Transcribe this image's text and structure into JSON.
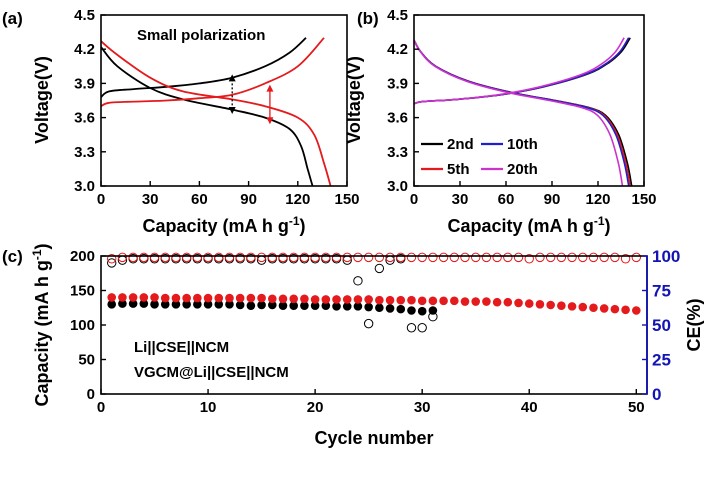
{
  "colors": {
    "black": "#000000",
    "red": "#e41a1c",
    "blue": "#1f1fd0",
    "magenta": "#cc33cc",
    "ce_axis": "#1414b4"
  },
  "chart_data": [
    {
      "id": "a",
      "type": "line",
      "panel_label": "(a)",
      "xlabel": "Capacity (mA h g",
      "xlabel_sup": "-1",
      "xlabel_close": ")",
      "ylabel": "Voltage(V)",
      "xlim": [
        0,
        150
      ],
      "ylim": [
        3.0,
        4.5
      ],
      "xticks": [
        "0",
        "30",
        "60",
        "90",
        "120",
        "150"
      ],
      "yticks": [
        "3.0",
        "3.3",
        "3.6",
        "3.9",
        "4.2",
        "4.5"
      ],
      "annotation": "Small polarization",
      "series": [
        {
          "color": "black",
          "curve": "charge",
          "x": [
            0,
            5,
            20,
            40,
            60,
            80,
            100,
            115,
            125
          ],
          "y": [
            3.78,
            3.83,
            3.85,
            3.87,
            3.9,
            3.95,
            4.05,
            4.17,
            4.3
          ]
        },
        {
          "color": "black",
          "curve": "discharge",
          "x": [
            0,
            10,
            30,
            50,
            80,
            100,
            115,
            122,
            126,
            129
          ],
          "y": [
            4.22,
            4.05,
            3.86,
            3.76,
            3.67,
            3.6,
            3.5,
            3.35,
            3.15,
            3.0
          ]
        },
        {
          "color": "red",
          "curve": "charge",
          "x": [
            0,
            5,
            20,
            40,
            60,
            80,
            100,
            120,
            136
          ],
          "y": [
            3.7,
            3.73,
            3.74,
            3.75,
            3.77,
            3.8,
            3.9,
            4.05,
            4.3
          ]
        },
        {
          "color": "red",
          "curve": "discharge",
          "x": [
            0,
            10,
            30,
            50,
            80,
            100,
            120,
            130,
            136,
            140
          ],
          "y": [
            4.27,
            4.15,
            3.95,
            3.83,
            3.76,
            3.7,
            3.6,
            3.45,
            3.2,
            3.0
          ]
        }
      ],
      "arrows": [
        {
          "color": "black",
          "x": 80,
          "y1": 3.64,
          "y2": 3.97
        },
        {
          "color": "red",
          "x": 103,
          "y1": 3.55,
          "y2": 3.88
        }
      ]
    },
    {
      "id": "b",
      "type": "line",
      "panel_label": "(b)",
      "xlabel": "Capacity (mA h g",
      "xlabel_sup": "-1",
      "xlabel_close": ")",
      "ylabel": "Voltage(V)",
      "xlim": [
        0,
        150
      ],
      "ylim": [
        3.0,
        4.5
      ],
      "xticks": [
        "0",
        "30",
        "60",
        "90",
        "120",
        "150"
      ],
      "yticks": [
        "3.0",
        "3.3",
        "3.6",
        "3.9",
        "4.2",
        "4.5"
      ],
      "legend_position": "bottom-left",
      "series": [
        {
          "name": "2nd",
          "color": "black",
          "charge_end": 141,
          "discharge_end": 142
        },
        {
          "name": "5th",
          "color": "red",
          "charge_end": 140,
          "discharge_end": 141
        },
        {
          "name": "10th",
          "color": "blue",
          "charge_end": 140,
          "discharge_end": 140
        },
        {
          "name": "20th",
          "color": "magenta",
          "charge_end": 137,
          "discharge_end": 136
        }
      ],
      "charge_shape": {
        "xf": [
          0,
          0.04,
          0.2,
          0.4,
          0.6,
          0.8,
          0.9,
          0.96,
          1.0
        ],
        "y": [
          3.72,
          3.74,
          3.76,
          3.8,
          3.87,
          3.98,
          4.08,
          4.18,
          4.3
        ]
      },
      "discharge_shape": {
        "xf": [
          0,
          0.03,
          0.1,
          0.25,
          0.45,
          0.65,
          0.8,
          0.88,
          0.94,
          0.98,
          1.0
        ],
        "y": [
          4.28,
          4.18,
          4.05,
          3.92,
          3.82,
          3.75,
          3.69,
          3.62,
          3.45,
          3.2,
          3.0
        ]
      }
    },
    {
      "id": "c",
      "type": "scatter",
      "panel_label": "(c)",
      "xlabel": "Cycle number",
      "ylabel": "Capacity (mA h g",
      "ylabel_sup": "-1",
      "ylabel_close": ")",
      "y2label": "CE(%)",
      "xlim": [
        0,
        51
      ],
      "ylim": [
        0,
        200
      ],
      "y2lim": [
        0,
        100
      ],
      "xticks": [
        "0",
        "10",
        "20",
        "30",
        "40",
        "50"
      ],
      "yticks": [
        "0",
        "50",
        "100",
        "150",
        "200"
      ],
      "y2ticks": [
        "0",
        "25",
        "50",
        "75",
        "100"
      ],
      "legend": [
        {
          "name": "Li||CSE||NCM",
          "color": "black"
        },
        {
          "name": "VGCM@Li||CSE||NCM",
          "color": "red"
        }
      ],
      "series": [
        {
          "name": "Li||CSE||NCM capacity",
          "color": "black",
          "marker": "filled",
          "x": [
            1,
            2,
            3,
            4,
            5,
            6,
            7,
            8,
            9,
            10,
            11,
            12,
            13,
            14,
            15,
            16,
            17,
            18,
            19,
            20,
            21,
            22,
            23,
            24,
            25,
            26,
            27,
            28,
            29,
            30,
            31
          ],
          "y": [
            130,
            131,
            131,
            131,
            130,
            130,
            130,
            130,
            130,
            130,
            130,
            130,
            129,
            128,
            129,
            129,
            128,
            128,
            128,
            128,
            128,
            127,
            127,
            127,
            126,
            125,
            124,
            123,
            121,
            120,
            121
          ]
        },
        {
          "name": "Li||CSE||NCM CE",
          "color": "black",
          "marker": "open",
          "axis": "right",
          "x": [
            1,
            2,
            3,
            4,
            5,
            6,
            7,
            8,
            9,
            10,
            11,
            12,
            13,
            14,
            15,
            16,
            17,
            18,
            19,
            20,
            21,
            22,
            23,
            24,
            25,
            26,
            27,
            28,
            29,
            30,
            31
          ],
          "y": [
            95,
            97,
            98,
            98,
            98,
            98,
            98,
            98,
            98,
            98,
            98,
            98,
            98,
            98,
            97,
            98,
            98,
            98,
            98,
            98,
            98,
            98,
            97,
            82,
            51,
            91,
            97,
            98,
            48,
            48,
            56
          ]
        },
        {
          "name": "VGCM@Li||CSE||NCM capacity",
          "color": "red",
          "marker": "filled",
          "x": [
            1,
            2,
            3,
            4,
            5,
            6,
            7,
            8,
            9,
            10,
            11,
            12,
            13,
            14,
            15,
            16,
            17,
            18,
            19,
            20,
            21,
            22,
            23,
            24,
            25,
            26,
            27,
            28,
            29,
            30,
            31,
            32,
            33,
            34,
            35,
            36,
            37,
            38,
            39,
            40,
            41,
            42,
            43,
            44,
            45,
            46,
            47,
            48,
            49,
            50
          ],
          "y": [
            140,
            140,
            140,
            140,
            140,
            139,
            139,
            139,
            139,
            139,
            139,
            139,
            139,
            139,
            139,
            138,
            138,
            138,
            138,
            137,
            137,
            137,
            137,
            137,
            137,
            136,
            136,
            136,
            136,
            135,
            135,
            135,
            135,
            134,
            134,
            134,
            133,
            133,
            132,
            131,
            130,
            129,
            128,
            127,
            126,
            125,
            124,
            123,
            122,
            121
          ]
        },
        {
          "name": "VGCM@Li||CSE||NCM CE",
          "color": "red",
          "marker": "open",
          "axis": "right",
          "x": [
            1,
            2,
            3,
            4,
            5,
            6,
            7,
            8,
            9,
            10,
            11,
            12,
            13,
            14,
            15,
            16,
            17,
            18,
            19,
            20,
            21,
            22,
            23,
            24,
            25,
            26,
            27,
            28,
            29,
            30,
            31,
            32,
            33,
            34,
            35,
            36,
            37,
            38,
            39,
            40,
            41,
            42,
            43,
            44,
            45,
            46,
            47,
            48,
            49,
            50
          ],
          "y": [
            98,
            99,
            99,
            99,
            99,
            99,
            99,
            99,
            99,
            99,
            99,
            99,
            99,
            99,
            99,
            99,
            99,
            99,
            99,
            99,
            99,
            99,
            99,
            99,
            99,
            99,
            99,
            99,
            99,
            99,
            99,
            99,
            99,
            99,
            99,
            99,
            99,
            99,
            99,
            98,
            99,
            99,
            99,
            99,
            99,
            99,
            99,
            99,
            98,
            99
          ]
        }
      ]
    }
  ]
}
